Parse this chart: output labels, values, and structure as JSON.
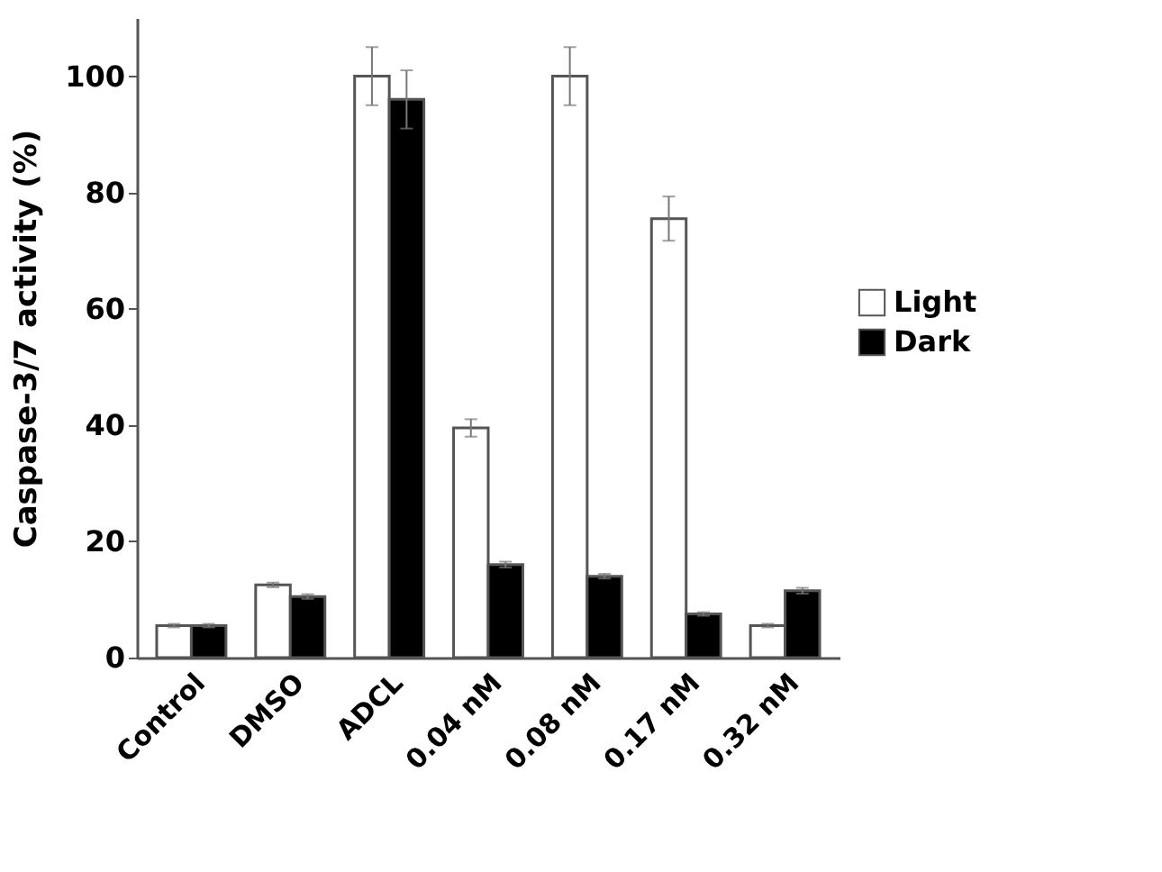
{
  "chart_data": {
    "type": "bar",
    "ylabel": "Caspase-3/7 activity (%)",
    "categories": [
      "Control",
      "DMSO",
      "ADCL",
      "0.04 nM",
      "0.08 nM",
      "0.17 nM",
      "0.32 nM"
    ],
    "series": [
      {
        "name": "Light",
        "color": "#ffffff",
        "values": [
          5.5,
          12.5,
          100,
          39.5,
          100,
          75.5,
          5.5
        ],
        "errors": [
          0.3,
          0.4,
          5,
          1.5,
          5,
          3.8,
          0.3
        ]
      },
      {
        "name": "Dark",
        "color": "#000000",
        "values": [
          5.5,
          10.5,
          96,
          16,
          14,
          7.5,
          11.5
        ],
        "errors": [
          0.3,
          0.4,
          5,
          0.5,
          0.4,
          0.3,
          0.5
        ]
      }
    ],
    "ylim": [
      0,
      110
    ],
    "yticks": [
      0,
      20,
      40,
      60,
      80,
      100
    ],
    "grid": false,
    "legend": "right"
  }
}
